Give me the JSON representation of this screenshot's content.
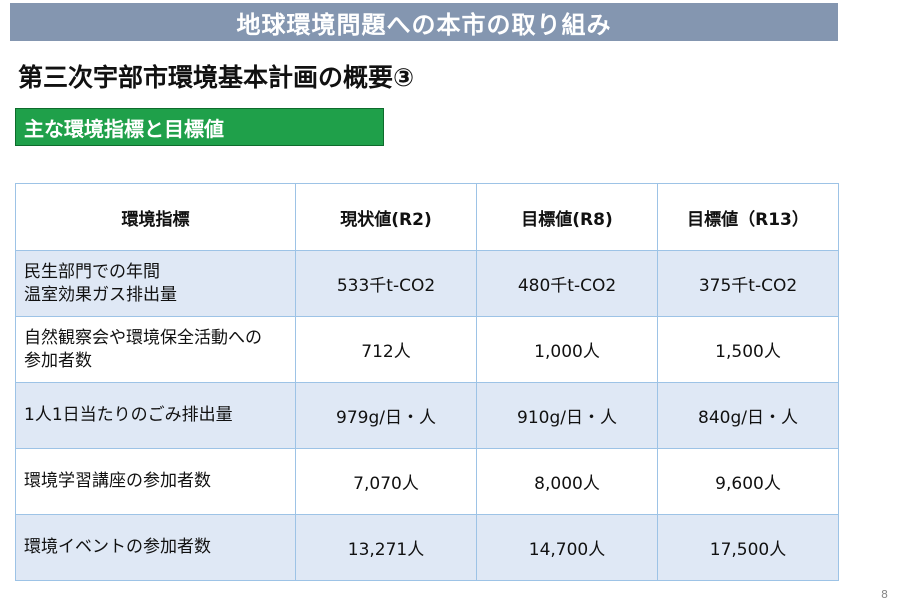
{
  "banner": {
    "title": "地球環境問題への本市の取り組み"
  },
  "heading": "第三次宇部市環境基本計画の概要③",
  "badge": "主な環境指標と目標値",
  "table": {
    "headers": [
      "環境指標",
      "現状値(R2)",
      "目標値(R8)",
      "目標値（R13）"
    ],
    "rows": [
      {
        "label": "民生部門での年間\n温室効果ガス排出量",
        "values": [
          "533千t-CO2",
          "480千t-CO2",
          "375千t-CO2"
        ]
      },
      {
        "label": "自然観察会や環境保全活動への\n参加者数",
        "values": [
          "712人",
          "1,000人",
          "1,500人"
        ]
      },
      {
        "label": "1人1日当たりのごみ排出量",
        "values": [
          "979g/日・人",
          "910g/日・人",
          "840g/日・人"
        ]
      },
      {
        "label": "環境学習講座の参加者数",
        "values": [
          "7,070人",
          "8,000人",
          "9,600人"
        ]
      },
      {
        "label": "環境イベントの参加者数",
        "values": [
          "13,271人",
          "14,700人",
          "17,500人"
        ]
      }
    ]
  },
  "page_number": "8"
}
